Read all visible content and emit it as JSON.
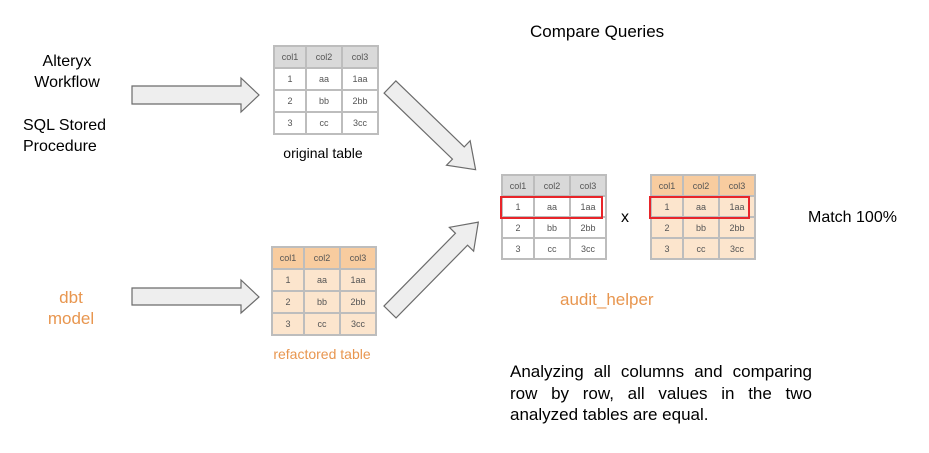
{
  "title": "Compare Queries",
  "sources": {
    "legacy_line1": "Alteryx",
    "legacy_line2": "Workflow",
    "sql_line1": "SQL Stored",
    "sql_line2": "Procedure",
    "dbt_line1": "dbt",
    "dbt_line2": "model"
  },
  "tables": {
    "headers": [
      "col1",
      "col2",
      "col3"
    ],
    "rows": [
      [
        "1",
        "aa",
        "1aa"
      ],
      [
        "2",
        "bb",
        "2bb"
      ],
      [
        "3",
        "cc",
        "3cc"
      ]
    ],
    "original_caption": "original table",
    "refactored_caption": "refactored table",
    "highlighted_row": 1
  },
  "compare": {
    "operator": "x",
    "tool": "audit_helper",
    "result": "Match 100%",
    "description": "Analyzing all columns and comparing row by row, all values in the two analyzed tables are equal."
  },
  "colors": {
    "accent_orange": "#e8964f",
    "highlight_red": "#e8252a",
    "original_header": "#d9d9d9",
    "refactored_header": "#f8cc9f",
    "refactored_cell": "#fce5cd",
    "arrow_fill": "#eeeeee"
  }
}
